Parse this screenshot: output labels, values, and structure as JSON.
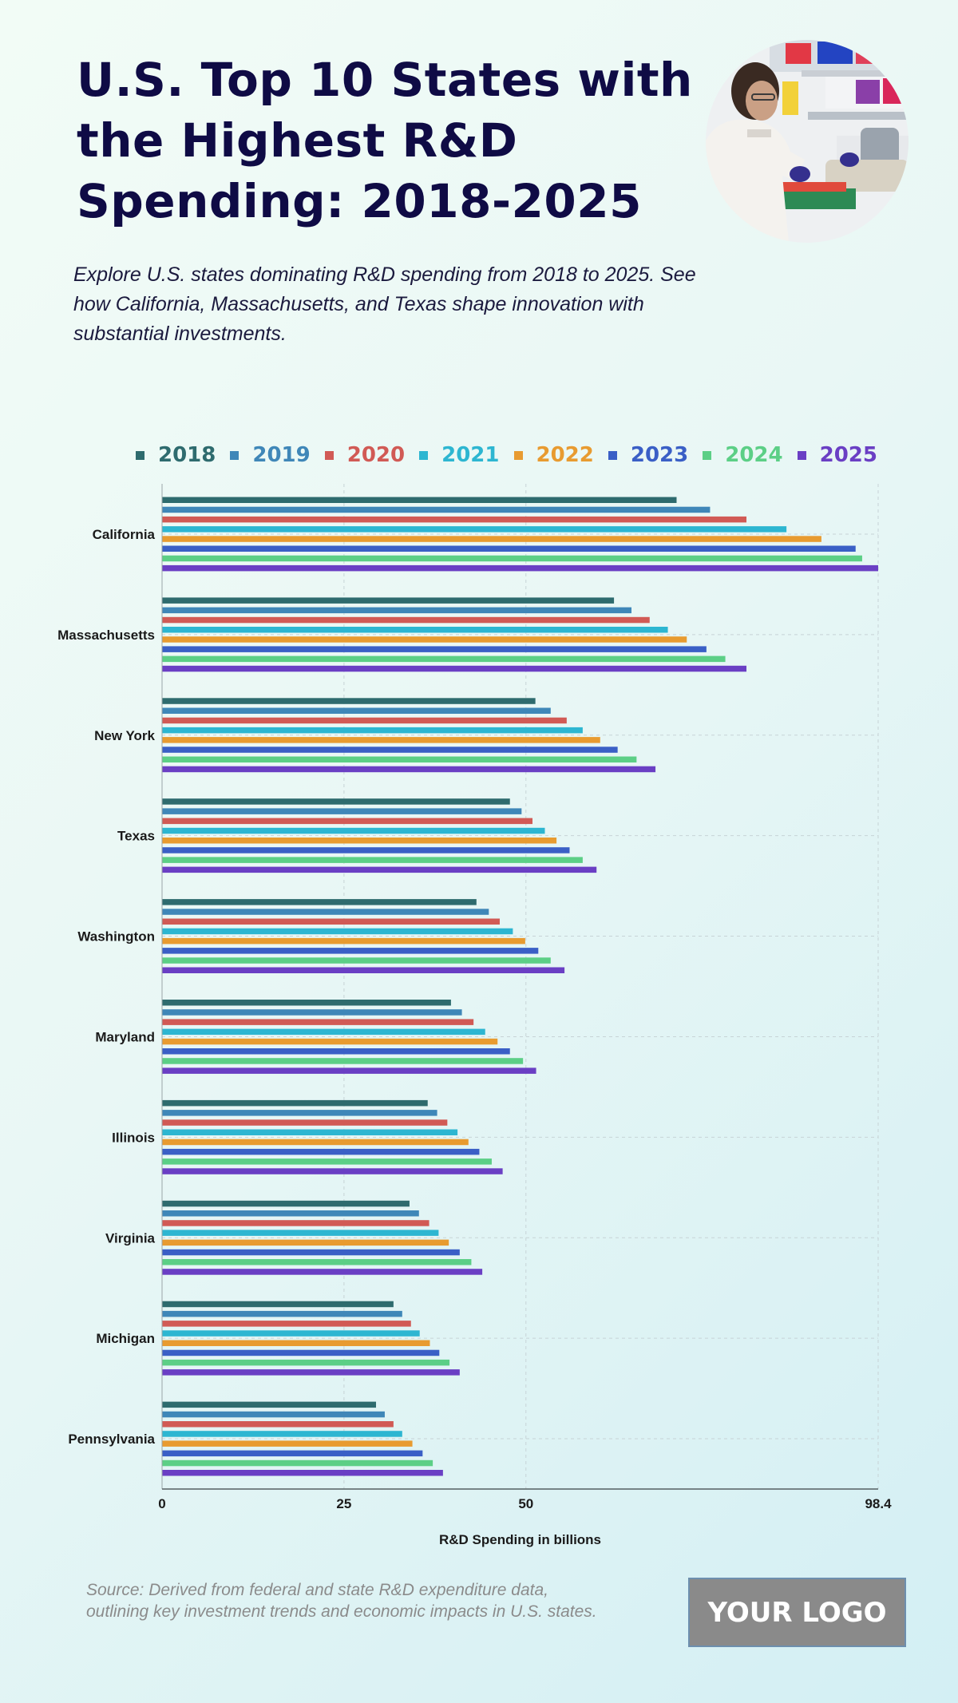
{
  "header": {
    "title": "U.S. Top 10 States with the Highest R&D Spending: 2018-2025",
    "subtitle": "Explore U.S. states dominating R&D spending from 2018 to 2025. See how California, Massachusetts, and Texas shape innovation with substantial investments."
  },
  "footer": {
    "source": "Source: Derived from federal and state R&D expenditure data, outlining key investment trends and economic impacts in U.S. states.",
    "logo_text": "YOUR LOGO"
  },
  "chart_data": {
    "type": "bar",
    "orientation": "horizontal",
    "categories": [
      "California",
      "Massachusetts",
      "New York",
      "Texas",
      "Washington",
      "Maryland",
      "Illinois",
      "Virginia",
      "Michigan",
      "Pennsylvania"
    ],
    "series": [
      {
        "name": "2018",
        "color": "#2e6b6e",
        "values": [
          70.7,
          62.1,
          51.3,
          47.8,
          43.2,
          39.7,
          36.5,
          34.0,
          31.8,
          29.4
        ]
      },
      {
        "name": "2019",
        "color": "#3f87b8",
        "values": [
          75.3,
          64.5,
          53.4,
          49.4,
          44.9,
          41.2,
          37.8,
          35.3,
          33.0,
          30.6
        ]
      },
      {
        "name": "2020",
        "color": "#d15a55",
        "values": [
          80.3,
          67.0,
          55.6,
          50.9,
          46.4,
          42.8,
          39.2,
          36.7,
          34.2,
          31.8
        ]
      },
      {
        "name": "2021",
        "color": "#2db6d1",
        "values": [
          85.8,
          69.5,
          57.8,
          52.6,
          48.2,
          44.4,
          40.6,
          38.0,
          35.4,
          33.0
        ]
      },
      {
        "name": "2022",
        "color": "#e89b30",
        "values": [
          90.6,
          72.1,
          60.2,
          54.2,
          49.9,
          46.1,
          42.1,
          39.4,
          36.8,
          34.4
        ]
      },
      {
        "name": "2023",
        "color": "#3a5fc6",
        "values": [
          95.3,
          74.8,
          62.6,
          56.0,
          51.7,
          47.8,
          43.6,
          40.9,
          38.1,
          35.8
        ]
      },
      {
        "name": "2024",
        "color": "#5ccf86",
        "values": [
          96.2,
          77.4,
          65.2,
          57.8,
          53.4,
          49.6,
          45.3,
          42.5,
          39.5,
          37.2
        ]
      },
      {
        "name": "2025",
        "color": "#6a3fc4",
        "values": [
          98.4,
          80.3,
          67.8,
          59.7,
          55.3,
          51.4,
          46.8,
          44.0,
          40.9,
          38.6
        ]
      }
    ],
    "xlabel": "R&D Spending in billions",
    "ylabel": "",
    "xlim": [
      0,
      98.4
    ],
    "xticks": [
      "0",
      "25",
      "50",
      "98.4"
    ],
    "grid": true,
    "legend_position": "top"
  }
}
